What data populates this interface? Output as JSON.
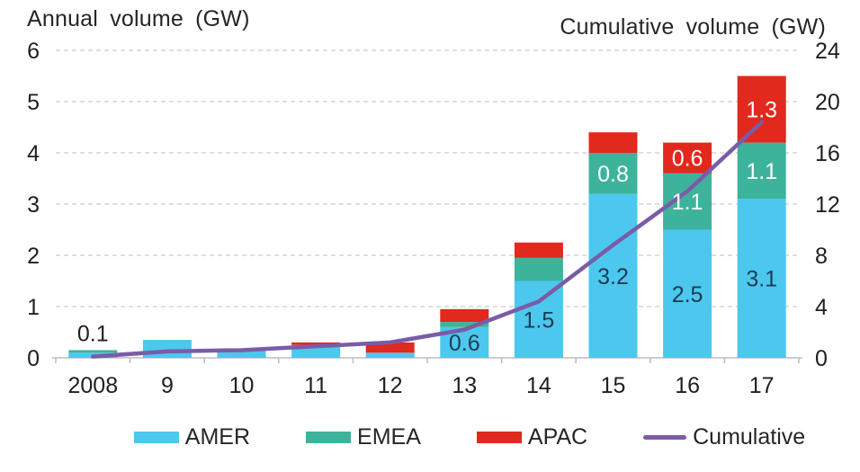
{
  "chart_data": {
    "type": "combo: stacked-bar + line",
    "categories": [
      "2008",
      "9",
      "10",
      "11",
      "12",
      "13",
      "14",
      "15",
      "16",
      "17"
    ],
    "series": [
      {
        "name": "AMER",
        "color": "#4cc8ef",
        "label_color": "#1b3a52",
        "values": [
          0.1,
          0.35,
          0.15,
          0.25,
          0.1,
          0.6,
          1.5,
          3.2,
          2.5,
          3.1
        ],
        "labels": [
          null,
          null,
          null,
          null,
          null,
          "0.6",
          "1.5",
          "3.2",
          "2.5",
          "3.1"
        ]
      },
      {
        "name": "EMEA",
        "color": "#3eb39c",
        "label_color": "#ffffff",
        "values": [
          0.05,
          0,
          0,
          0,
          0,
          0.1,
          0.45,
          0.8,
          1.1,
          1.1
        ],
        "labels": [
          null,
          null,
          null,
          null,
          null,
          null,
          null,
          "0.8",
          "1.1",
          "1.1"
        ]
      },
      {
        "name": "APAC",
        "color": "#e1291e",
        "label_color": "#ffffff",
        "values": [
          0,
          0,
          0,
          0.05,
          0.2,
          0.25,
          0.3,
          0.4,
          0.6,
          1.3
        ],
        "labels": [
          null,
          null,
          null,
          null,
          null,
          null,
          null,
          null,
          "0.6",
          "1.3"
        ]
      }
    ],
    "line_series": {
      "name": "Cumulative",
      "color": "#7a5ca6",
      "axis": "right",
      "values": [
        0.1,
        0.5,
        0.6,
        0.9,
        1.2,
        2.2,
        4.4,
        8.8,
        13.0,
        18.4
      ]
    },
    "outside_labels": [
      "0.1",
      null,
      null,
      null,
      null,
      null,
      null,
      null,
      null,
      null
    ],
    "left_axis": {
      "title": "Annual volume (GW)",
      "ticks": [
        0,
        1,
        2,
        3,
        4,
        5,
        6
      ],
      "range": [
        0,
        6
      ]
    },
    "right_axis": {
      "title": "Cumulative volume (GW)",
      "ticks": [
        0,
        4,
        8,
        12,
        16,
        20,
        24
      ],
      "range": [
        0,
        24
      ]
    },
    "grid": "dashed horizontal",
    "legend_position": "bottom"
  },
  "legend": {
    "items": [
      {
        "label": "AMER",
        "color": "#4cc8ef",
        "type": "rect"
      },
      {
        "label": "EMEA",
        "color": "#3eb39c",
        "type": "rect"
      },
      {
        "label": "APAC",
        "color": "#e1291e",
        "type": "rect"
      },
      {
        "label": "Cumulative",
        "color": "#7a5ca6",
        "type": "line"
      }
    ]
  },
  "style": {
    "grid_color": "#c9c9c9",
    "axis_color": "#bdbdbd",
    "tick_text_color": "#1f1f1f"
  }
}
